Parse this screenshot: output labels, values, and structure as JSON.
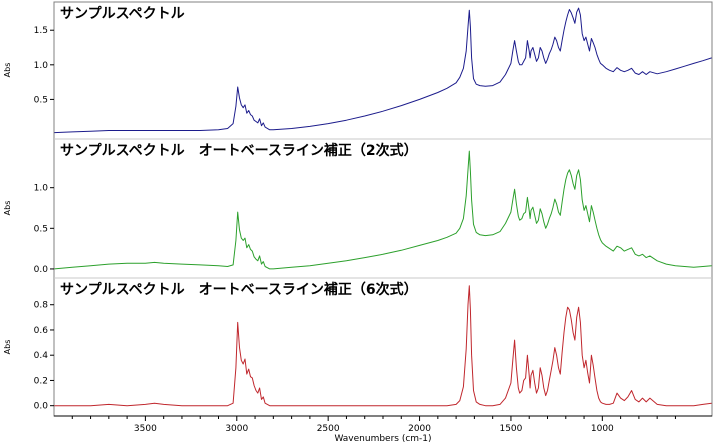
{
  "x_axis": {
    "label": "Wavenumbers (cm-1)",
    "xlim": [
      4000,
      400
    ],
    "ticks": [
      3500,
      3000,
      2500,
      2000,
      1500,
      1000
    ],
    "tick_labels": [
      "3500",
      "3000",
      "2500",
      "2000",
      "1500",
      "1000"
    ]
  },
  "chart_data": [
    {
      "type": "line",
      "title": "サンプルスペクトル",
      "ylabel": "Abs",
      "color": "#1c1c8c",
      "ylim": [
        0,
        1.85
      ],
      "yticks": [
        0.5,
        1.0,
        1.5
      ],
      "ytick_labels": [
        "0.5",
        "1.0",
        "1.5"
      ],
      "series": [
        {
          "x": [
            3998,
            3900,
            3800,
            3700,
            3600,
            3500,
            3450,
            3400,
            3300,
            3200,
            3100,
            3050,
            3020,
            3005,
            2995,
            2985,
            2975,
            2965,
            2955,
            2945,
            2935,
            2925,
            2915,
            2905,
            2895,
            2885,
            2875,
            2865,
            2855,
            2845,
            2820,
            2800,
            2700,
            2600,
            2500,
            2400,
            2300,
            2200,
            2100,
            2000,
            1900,
            1850,
            1800,
            1780,
            1760,
            1745,
            1735,
            1728,
            1722,
            1715,
            1705,
            1690,
            1670,
            1640,
            1600,
            1560,
            1530,
            1500,
            1490,
            1480,
            1470,
            1460,
            1452,
            1440,
            1430,
            1420,
            1410,
            1400,
            1395,
            1390,
            1380,
            1370,
            1360,
            1350,
            1340,
            1330,
            1320,
            1310,
            1300,
            1290,
            1280,
            1270,
            1260,
            1250,
            1240,
            1230,
            1220,
            1210,
            1200,
            1190,
            1180,
            1170,
            1160,
            1150,
            1140,
            1130,
            1120,
            1110,
            1100,
            1090,
            1080,
            1070,
            1060,
            1050,
            1040,
            1030,
            1020,
            1010,
            1000,
            980,
            960,
            940,
            920,
            900,
            880,
            860,
            840,
            820,
            800,
            780,
            760,
            740,
            700,
            650,
            600,
            550,
            500,
            450,
            402
          ],
          "y": [
            0.02,
            0.03,
            0.04,
            0.05,
            0.05,
            0.05,
            0.05,
            0.05,
            0.05,
            0.05,
            0.06,
            0.08,
            0.15,
            0.4,
            0.68,
            0.52,
            0.42,
            0.38,
            0.42,
            0.3,
            0.34,
            0.28,
            0.26,
            0.2,
            0.18,
            0.16,
            0.22,
            0.12,
            0.16,
            0.1,
            0.06,
            0.06,
            0.08,
            0.11,
            0.15,
            0.2,
            0.26,
            0.33,
            0.41,
            0.5,
            0.6,
            0.66,
            0.74,
            0.82,
            0.95,
            1.2,
            1.55,
            1.79,
            1.55,
            1.1,
            0.8,
            0.72,
            0.7,
            0.69,
            0.7,
            0.75,
            0.86,
            1.02,
            1.2,
            1.35,
            1.2,
            1.05,
            1.0,
            1.0,
            1.05,
            1.1,
            1.35,
            1.2,
            1.1,
            1.2,
            1.25,
            1.15,
            1.05,
            1.1,
            1.25,
            1.2,
            1.1,
            1.02,
            1.08,
            1.16,
            1.22,
            1.3,
            1.4,
            1.35,
            1.25,
            1.2,
            1.35,
            1.5,
            1.62,
            1.72,
            1.8,
            1.75,
            1.68,
            1.6,
            1.76,
            1.82,
            1.72,
            1.45,
            1.35,
            1.4,
            1.3,
            1.2,
            1.38,
            1.32,
            1.25,
            1.15,
            1.08,
            1.02,
            1.0,
            0.95,
            0.92,
            0.9,
            0.96,
            0.92,
            0.9,
            0.92,
            0.95,
            0.88,
            0.86,
            0.9,
            0.86,
            0.9,
            0.87,
            0.9,
            0.94,
            0.98,
            1.02,
            1.06,
            1.1
          ]
        }
      ]
    },
    {
      "type": "line",
      "title": "サンプルスペクトル　オートベースライン補正（2次式）",
      "ylabel": "Abs",
      "color": "#2ca02c",
      "ylim": [
        -0.05,
        1.55
      ],
      "yticks": [
        0.0,
        0.5,
        1.0
      ],
      "ytick_labels": [
        "0.0",
        "0.5",
        "1.0"
      ],
      "series": [
        {
          "x": [
            3998,
            3900,
            3800,
            3700,
            3600,
            3500,
            3450,
            3400,
            3300,
            3200,
            3100,
            3050,
            3020,
            3005,
            2995,
            2985,
            2975,
            2965,
            2955,
            2945,
            2935,
            2925,
            2915,
            2905,
            2895,
            2885,
            2875,
            2865,
            2855,
            2845,
            2820,
            2800,
            2700,
            2600,
            2500,
            2400,
            2300,
            2200,
            2100,
            2000,
            1900,
            1850,
            1800,
            1780,
            1760,
            1745,
            1735,
            1728,
            1722,
            1715,
            1705,
            1690,
            1670,
            1640,
            1600,
            1560,
            1530,
            1500,
            1490,
            1480,
            1470,
            1460,
            1452,
            1440,
            1430,
            1420,
            1410,
            1400,
            1395,
            1390,
            1380,
            1370,
            1360,
            1350,
            1340,
            1330,
            1320,
            1310,
            1300,
            1290,
            1280,
            1270,
            1260,
            1250,
            1240,
            1230,
            1220,
            1210,
            1200,
            1190,
            1180,
            1170,
            1160,
            1150,
            1140,
            1130,
            1120,
            1110,
            1100,
            1090,
            1080,
            1070,
            1060,
            1050,
            1040,
            1030,
            1020,
            1010,
            1000,
            980,
            960,
            940,
            920,
            900,
            880,
            860,
            840,
            820,
            800,
            780,
            760,
            740,
            700,
            650,
            600,
            550,
            500,
            450,
            402
          ],
          "y": [
            0.0,
            0.02,
            0.04,
            0.06,
            0.07,
            0.07,
            0.08,
            0.07,
            0.06,
            0.05,
            0.04,
            0.03,
            0.05,
            0.35,
            0.7,
            0.48,
            0.38,
            0.35,
            0.38,
            0.26,
            0.3,
            0.24,
            0.22,
            0.15,
            0.12,
            0.1,
            0.16,
            0.06,
            0.09,
            0.03,
            0.0,
            0.0,
            0.02,
            0.04,
            0.07,
            0.1,
            0.14,
            0.18,
            0.23,
            0.29,
            0.35,
            0.39,
            0.44,
            0.5,
            0.62,
            0.9,
            1.22,
            1.45,
            1.2,
            0.85,
            0.55,
            0.45,
            0.42,
            0.41,
            0.42,
            0.46,
            0.56,
            0.7,
            0.85,
            0.98,
            0.8,
            0.65,
            0.6,
            0.62,
            0.68,
            0.7,
            0.88,
            0.72,
            0.62,
            0.72,
            0.76,
            0.66,
            0.56,
            0.6,
            0.74,
            0.68,
            0.58,
            0.5,
            0.55,
            0.62,
            0.68,
            0.76,
            0.86,
            0.8,
            0.7,
            0.66,
            0.82,
            0.98,
            1.1,
            1.18,
            1.22,
            1.15,
            1.05,
            0.98,
            1.15,
            1.22,
            1.1,
            0.85,
            0.72,
            0.78,
            0.68,
            0.58,
            0.78,
            0.7,
            0.6,
            0.5,
            0.42,
            0.36,
            0.32,
            0.28,
            0.25,
            0.22,
            0.28,
            0.26,
            0.22,
            0.24,
            0.26,
            0.18,
            0.16,
            0.18,
            0.14,
            0.16,
            0.1,
            0.06,
            0.04,
            0.03,
            0.02,
            0.03,
            0.04
          ]
        }
      ]
    },
    {
      "type": "line",
      "title": "サンプルスペクトル　オートベースライン補正（6次式）",
      "ylabel": "Abs",
      "color": "#c0272d",
      "ylim": [
        -0.05,
        0.98
      ],
      "yticks": [
        0.0,
        0.2,
        0.4,
        0.6,
        0.8
      ],
      "ytick_labels": [
        "0.0",
        "0.2",
        "0.4",
        "0.6",
        "0.8"
      ],
      "series": [
        {
          "x": [
            3998,
            3900,
            3800,
            3700,
            3600,
            3500,
            3450,
            3400,
            3300,
            3200,
            3100,
            3050,
            3020,
            3005,
            2995,
            2985,
            2975,
            2965,
            2955,
            2945,
            2935,
            2925,
            2915,
            2905,
            2895,
            2885,
            2875,
            2865,
            2855,
            2845,
            2820,
            2800,
            2700,
            2600,
            2500,
            2400,
            2300,
            2200,
            2100,
            2000,
            1900,
            1850,
            1800,
            1780,
            1760,
            1745,
            1735,
            1728,
            1722,
            1715,
            1705,
            1690,
            1670,
            1640,
            1600,
            1560,
            1530,
            1500,
            1490,
            1480,
            1470,
            1460,
            1452,
            1440,
            1430,
            1420,
            1410,
            1400,
            1395,
            1390,
            1380,
            1370,
            1360,
            1350,
            1340,
            1330,
            1320,
            1310,
            1300,
            1290,
            1280,
            1270,
            1260,
            1250,
            1240,
            1230,
            1220,
            1210,
            1200,
            1190,
            1180,
            1170,
            1160,
            1150,
            1140,
            1130,
            1120,
            1110,
            1100,
            1090,
            1080,
            1070,
            1060,
            1050,
            1040,
            1030,
            1020,
            1010,
            1000,
            980,
            960,
            940,
            920,
            900,
            880,
            860,
            840,
            820,
            800,
            780,
            760,
            740,
            700,
            650,
            600,
            550,
            500,
            450,
            402
          ],
          "y": [
            0.0,
            0.0,
            0.0,
            0.01,
            0.0,
            0.01,
            0.02,
            0.01,
            0.0,
            0.0,
            0.0,
            0.0,
            0.02,
            0.3,
            0.66,
            0.46,
            0.36,
            0.33,
            0.37,
            0.25,
            0.29,
            0.23,
            0.22,
            0.16,
            0.12,
            0.1,
            0.14,
            0.05,
            0.07,
            0.02,
            0.0,
            0.0,
            0.0,
            0.0,
            0.0,
            0.0,
            0.0,
            0.0,
            0.0,
            0.0,
            0.0,
            0.0,
            0.01,
            0.04,
            0.15,
            0.45,
            0.8,
            0.95,
            0.76,
            0.4,
            0.12,
            0.03,
            0.01,
            0.0,
            0.0,
            0.01,
            0.06,
            0.18,
            0.36,
            0.52,
            0.3,
            0.14,
            0.1,
            0.12,
            0.2,
            0.22,
            0.4,
            0.24,
            0.14,
            0.24,
            0.28,
            0.18,
            0.1,
            0.14,
            0.3,
            0.24,
            0.14,
            0.08,
            0.12,
            0.2,
            0.28,
            0.36,
            0.46,
            0.4,
            0.3,
            0.25,
            0.42,
            0.58,
            0.7,
            0.78,
            0.76,
            0.68,
            0.58,
            0.52,
            0.7,
            0.78,
            0.66,
            0.4,
            0.3,
            0.36,
            0.26,
            0.18,
            0.4,
            0.32,
            0.22,
            0.12,
            0.06,
            0.03,
            0.02,
            0.01,
            0.01,
            0.02,
            0.1,
            0.06,
            0.04,
            0.07,
            0.12,
            0.05,
            0.03,
            0.06,
            0.03,
            0.06,
            0.01,
            0.0,
            0.0,
            0.0,
            0.0,
            0.01,
            0.02
          ]
        }
      ]
    }
  ]
}
